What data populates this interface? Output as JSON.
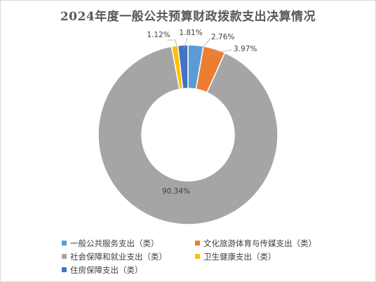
{
  "chart_data": {
    "type": "pie",
    "title": "2024年度一般公共预算财政拨款支出决算情况",
    "categories": [
      "一般公共服务支出（类）",
      "文化旅游体育与传媒支出（类）",
      "社会保障和就业支出（类）",
      "卫生健康支出（类）",
      "住房保障支出（类）"
    ],
    "values": [
      2.76,
      3.97,
      90.34,
      1.12,
      1.81
    ],
    "value_labels": [
      "2.76%",
      "3.97%",
      "90.34%",
      "1.12%",
      "1.81%"
    ],
    "colors": [
      "#5b9bd5",
      "#ed7d31",
      "#a5a5a5",
      "#ffc000",
      "#4472c4"
    ],
    "donut": true,
    "legend_position": "bottom"
  }
}
